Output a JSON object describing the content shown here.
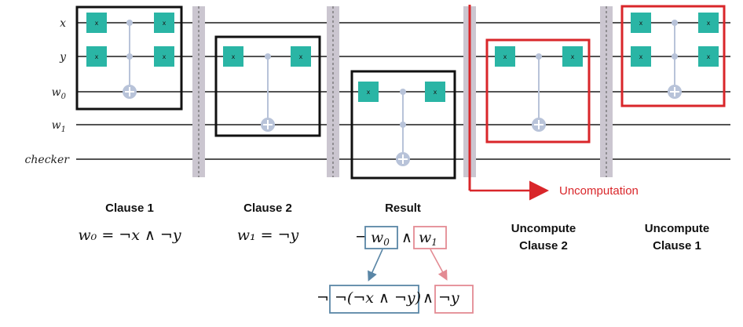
{
  "colors": {
    "gate_fill": "#2ab5a5",
    "control": "#b8c3d9",
    "wire": "#1a1a1a",
    "barrier": "#cbc6d0",
    "highlight_red": "#d9262a",
    "box_black": "#111111",
    "result_blue": "#5a86a6",
    "result_pink": "#e38b93"
  },
  "wires": [
    {
      "label": "x",
      "sub": ""
    },
    {
      "label": "y",
      "sub": ""
    },
    {
      "label": "w",
      "sub": "0"
    },
    {
      "label": "w",
      "sub": "1"
    },
    {
      "label": "checker",
      "sub": ""
    }
  ],
  "gate_label": "x",
  "sections": [
    {
      "title": "Clause 1",
      "formula": "w₀ = ¬x ∧ ¬y"
    },
    {
      "title": "Clause 2",
      "formula": "w₁ = ¬y"
    },
    {
      "title": "Result",
      "formula_top": "¬w₀ ∧ w₁",
      "formula_bottom": "¬(¬x ∧ ¬y) ∧ ¬y"
    },
    {
      "title_line1": "Uncompute",
      "title_line2": "Clause 2"
    },
    {
      "title_line1": "Uncompute",
      "title_line2": "Clause 1"
    }
  ],
  "result": {
    "neg": "¬",
    "w0": "w",
    "w0_sub": "0",
    "and": "∧",
    "w1": "w",
    "w1_sub": "1",
    "bottom_left": "¬(¬x ∧ ¬y)",
    "bottom_and": "∧",
    "bottom_right": "¬y"
  },
  "uncomputation_label": "Uncomputation"
}
